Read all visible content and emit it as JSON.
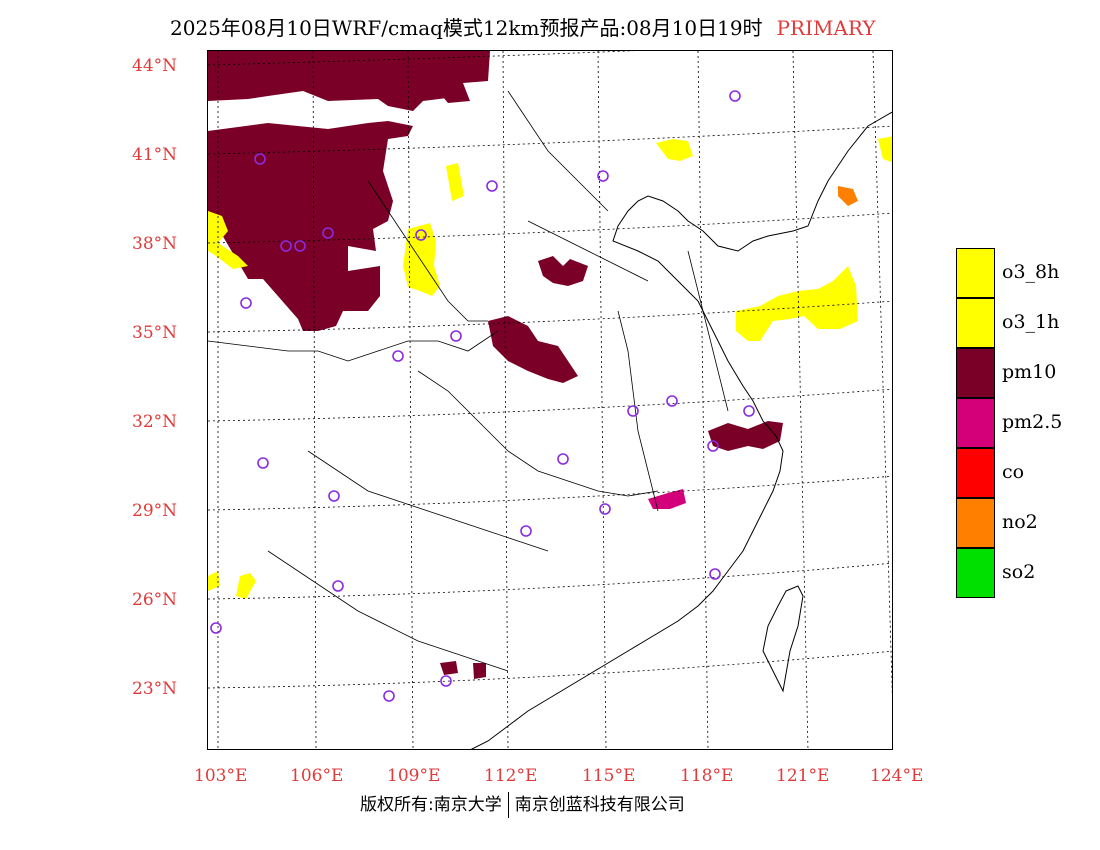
{
  "title": {
    "text": "2025年08月10日WRF/cmaq模式12km预报产品:08月10日19时",
    "tag": "PRIMARY",
    "tag_color": "#e03a3a"
  },
  "axes": {
    "latitudes": [
      "44°N",
      "41°N",
      "38°N",
      "35°N",
      "32°N",
      "29°N",
      "26°N",
      "23°N"
    ],
    "longitudes": [
      "103°E",
      "106°E",
      "109°E",
      "112°E",
      "115°E",
      "118°E",
      "121°E",
      "124°E"
    ],
    "label_color": "#e03a3a"
  },
  "legend": [
    {
      "label": "o3_8h",
      "color": "#ffff00"
    },
    {
      "label": "o3_1h",
      "color": "#ffff00"
    },
    {
      "label": "pm10",
      "color": "#7a0028"
    },
    {
      "label": "pm2.5",
      "color": "#d4007a"
    },
    {
      "label": "co",
      "color": "#ff0000"
    },
    {
      "label": "no2",
      "color": "#ff7f00"
    },
    {
      "label": "so2",
      "color": "#00e000"
    }
  ],
  "footer": {
    "left": "版权所有:南京大学",
    "right": "南京创蓝科技有限公司"
  }
}
